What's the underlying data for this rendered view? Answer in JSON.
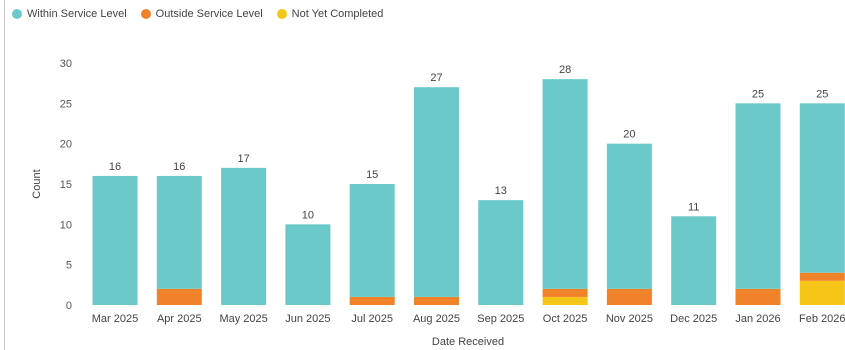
{
  "chart_data": {
    "type": "bar",
    "stacked": true,
    "xlabel": "Date Received",
    "ylabel": "Count",
    "ylim": [
      0,
      30
    ],
    "yticks": [
      0,
      5,
      10,
      15,
      20,
      25,
      30
    ],
    "grid": false,
    "legend_position": "top-left",
    "categories": [
      "Mar 2025",
      "Apr 2025",
      "May 2025",
      "Jun 2025",
      "Jul 2025",
      "Aug 2025",
      "Sep 2025",
      "Oct 2025",
      "Nov 2025",
      "Dec 2025",
      "Jan 2026",
      "Feb 2026"
    ],
    "totals": [
      "16",
      "16",
      "17",
      "10",
      "15",
      "27",
      "13",
      "28",
      "20",
      "11",
      "25",
      "25"
    ],
    "series": [
      {
        "name": "Not Yet Completed",
        "color": "#f5c518",
        "values": [
          0,
          0,
          0,
          0,
          0,
          0,
          0,
          1,
          0,
          0,
          0,
          3
        ]
      },
      {
        "name": "Outside Service Level",
        "color": "#f0832a",
        "values": [
          0,
          2,
          0,
          0,
          1,
          1,
          0,
          1,
          2,
          0,
          2,
          1
        ]
      },
      {
        "name": "Within Service Level",
        "color": "#6cc9c9",
        "values": [
          16,
          14,
          17,
          10,
          14,
          26,
          13,
          26,
          18,
          11,
          23,
          21
        ]
      }
    ]
  }
}
